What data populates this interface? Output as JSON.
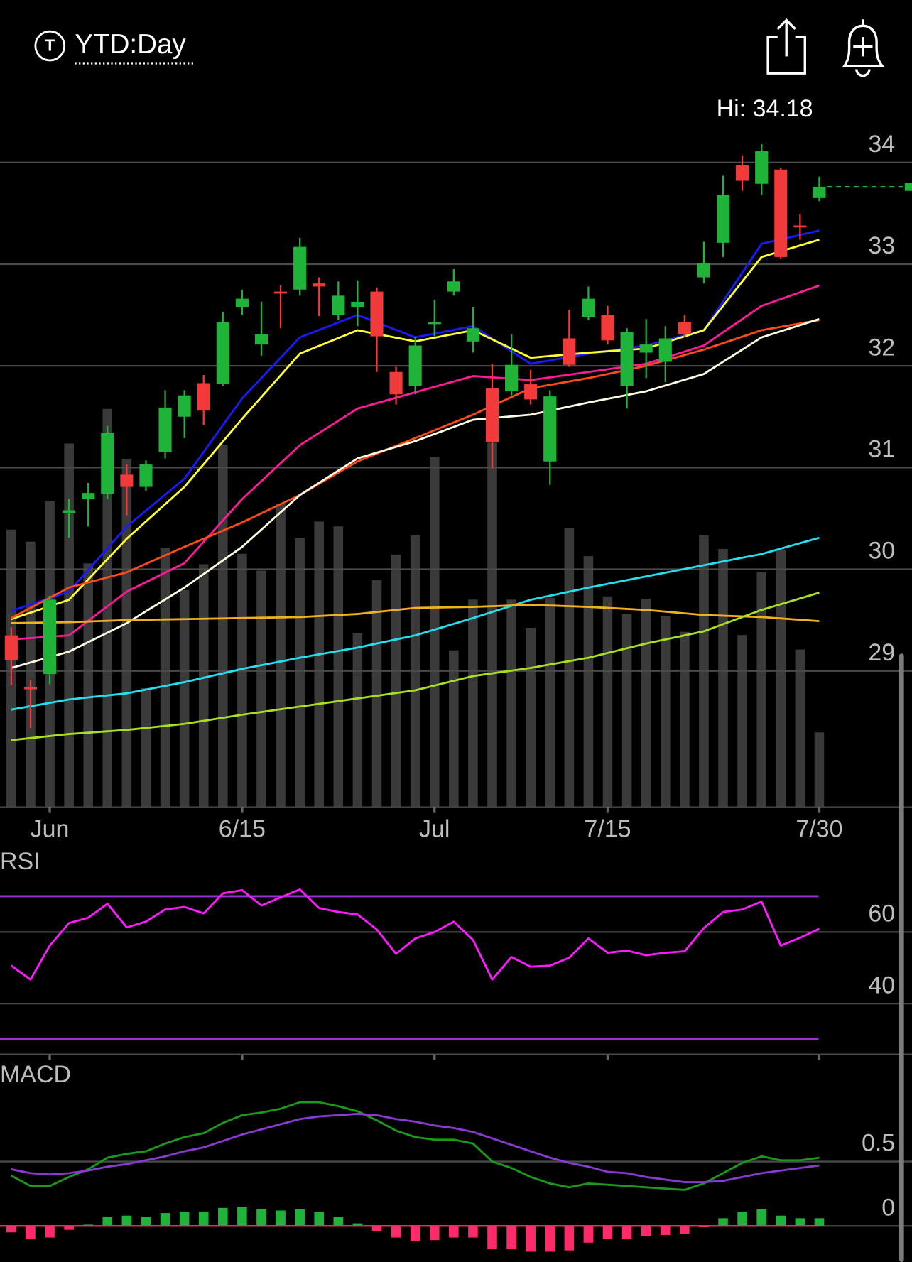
{
  "header": {
    "symbol_icon": "T",
    "range": "YTD:Day"
  },
  "chart_data": [
    {
      "type": "candlestick",
      "annotation": "Hi: 34.18",
      "categories": [
        null,
        null,
        "Jun",
        null,
        null,
        null,
        null,
        null,
        null,
        null,
        null,
        null,
        "6/15",
        null,
        null,
        null,
        null,
        null,
        null,
        null,
        null,
        null,
        "Jul",
        null,
        null,
        null,
        null,
        null,
        null,
        null,
        null,
        "7/15",
        null,
        null,
        null,
        null,
        null,
        null,
        null,
        null,
        null,
        null,
        "7/30"
      ],
      "open": [
        29.35,
        28.84,
        28.97,
        30.55,
        30.69,
        30.74,
        30.93,
        30.81,
        31.15,
        31.5,
        31.83,
        31.82,
        32.58,
        32.21,
        32.73,
        32.75,
        32.81,
        32.5,
        32.58,
        32.73,
        31.94,
        31.8,
        32.41,
        32.73,
        32.24,
        31.78,
        31.75,
        31.82,
        31.06,
        32.27,
        32.48,
        32.5,
        31.8,
        32.13,
        32.04,
        32.43,
        32.87,
        33.21,
        33.97,
        33.79,
        33.93,
        33.38,
        33.65
      ],
      "high": [
        29.43,
        28.91,
        29.74,
        30.69,
        30.85,
        31.41,
        31.03,
        31.07,
        31.76,
        31.76,
        31.91,
        32.53,
        32.75,
        32.63,
        32.79,
        33.26,
        32.87,
        32.83,
        32.84,
        32.77,
        31.99,
        32.28,
        32.65,
        32.95,
        32.58,
        32.02,
        32.31,
        31.96,
        31.76,
        32.55,
        32.78,
        32.59,
        32.37,
        32.46,
        32.39,
        32.5,
        33.22,
        33.87,
        34.07,
        34.18,
        33.95,
        33.49,
        33.86
      ],
      "low": [
        28.86,
        28.44,
        28.87,
        30.31,
        30.42,
        30.69,
        30.53,
        30.77,
        31.09,
        31.29,
        31.42,
        31.8,
        32.5,
        32.1,
        32.37,
        32.69,
        32.49,
        32.45,
        32.39,
        31.94,
        31.62,
        31.72,
        32.29,
        32.69,
        32.13,
        30.99,
        31.71,
        31.62,
        30.83,
        31.99,
        32.45,
        32.21,
        31.58,
        31.88,
        31.84,
        32.28,
        32.81,
        33.07,
        33.72,
        33.68,
        33.05,
        33.24,
        33.62
      ],
      "close": [
        29.11,
        28.82,
        29.7,
        30.58,
        30.75,
        31.34,
        30.81,
        31.03,
        31.59,
        31.71,
        31.56,
        32.43,
        32.66,
        32.31,
        32.71,
        33.17,
        32.78,
        32.69,
        32.63,
        32.29,
        31.72,
        32.2,
        32.43,
        32.83,
        32.37,
        31.25,
        32.01,
        31.67,
        31.7,
        32.01,
        32.66,
        32.25,
        32.33,
        32.21,
        32.27,
        32.31,
        33.01,
        33.68,
        33.82,
        34.11,
        33.07,
        33.36,
        33.76
      ],
      "up_color": "#1fb33a",
      "down_color": "#f23a3a",
      "volume": [
        69.0,
        66.0,
        76.0,
        90.4,
        60.6,
        99.0,
        86.6,
        29.6,
        64.4,
        54.0,
        60.4,
        90.0,
        63.0,
        58.8,
        75.4,
        67.0,
        71.0,
        69.8,
        43.2,
        56.4,
        62.8,
        67.6,
        87.0,
        39.0,
        51.6,
        90.6,
        51.6,
        44.6,
        52.0,
        69.4,
        62.4,
        52.4,
        48.0,
        51.8,
        47.6,
        43.6,
        67.6,
        64.2,
        42.8,
        58.4,
        64.0,
        39.2,
        18.6
      ],
      "volume_lim": [
        0,
        100
      ],
      "volume_color": "#3a3a3a",
      "overlay_x": [
        0,
        3,
        6,
        9,
        12,
        15,
        18,
        21,
        24,
        27,
        30,
        33,
        36,
        39,
        42
      ],
      "overlays": [
        {
          "color": "#1a1aff",
          "values": [
            29.59,
            29.78,
            30.42,
            30.89,
            31.68,
            32.28,
            32.5,
            32.28,
            32.39,
            32.02,
            32.12,
            32.2,
            32.35,
            33.2,
            33.33
          ]
        },
        {
          "color": "#ffff33",
          "values": [
            29.51,
            29.7,
            30.3,
            30.81,
            31.48,
            32.12,
            32.35,
            32.24,
            32.35,
            32.08,
            32.13,
            32.17,
            32.35,
            33.07,
            33.24
          ]
        },
        {
          "color": "#ff1a99",
          "values": [
            29.31,
            29.35,
            29.78,
            30.06,
            30.69,
            31.22,
            31.58,
            31.74,
            31.9,
            31.86,
            31.94,
            32.02,
            32.2,
            32.59,
            32.79
          ]
        },
        {
          "color": "#ff4a1a",
          "values": [
            29.52,
            29.82,
            29.97,
            30.22,
            30.46,
            30.73,
            31.06,
            31.29,
            31.52,
            31.78,
            31.88,
            32.0,
            32.16,
            32.35,
            32.45
          ]
        },
        {
          "color": "#fffbe0",
          "values": [
            29.03,
            29.19,
            29.47,
            29.82,
            30.22,
            30.73,
            31.09,
            31.26,
            31.47,
            31.52,
            31.64,
            31.75,
            31.92,
            32.28,
            32.46
          ]
        },
        {
          "color": "#22e0f0",
          "values": [
            28.62,
            28.72,
            28.78,
            28.89,
            29.02,
            29.13,
            29.23,
            29.35,
            29.52,
            29.7,
            29.82,
            29.93,
            30.04,
            30.15,
            30.31
          ]
        },
        {
          "color": "#f0b020",
          "values": [
            29.47,
            29.48,
            29.5,
            29.51,
            29.52,
            29.53,
            29.56,
            29.62,
            29.63,
            29.65,
            29.63,
            29.6,
            29.55,
            29.53,
            29.49
          ]
        },
        {
          "color": "#a8e020",
          "values": [
            28.32,
            28.38,
            28.42,
            28.48,
            28.57,
            28.65,
            28.73,
            28.81,
            28.95,
            29.03,
            29.13,
            29.27,
            29.39,
            29.6,
            29.77
          ]
        }
      ],
      "ylim": [
        27.66,
        34.41
      ],
      "yticks": [
        29,
        30,
        31,
        32,
        33,
        34
      ],
      "grid": true
    },
    {
      "type": "line",
      "title": "RSI",
      "series": [
        {
          "color": "#ff1aff",
          "values": [
            50.6,
            46.7,
            56.2,
            62.5,
            64.0,
            67.9,
            61.3,
            62.9,
            66.3,
            67.0,
            65.2,
            70.8,
            71.7,
            67.4,
            69.7,
            71.9,
            66.7,
            65.6,
            64.9,
            60.7,
            53.9,
            58.2,
            60.0,
            62.9,
            57.8,
            46.7,
            53.0,
            50.3,
            50.6,
            52.8,
            58.2,
            54.2,
            54.8,
            53.5,
            54.2,
            54.6,
            61.1,
            65.6,
            66.3,
            68.5,
            56.2,
            58.4,
            60.9
          ]
        }
      ],
      "levels": [
        70,
        30
      ],
      "level_color": "#9b30d9",
      "ylim": [
        25.8,
        75.3
      ],
      "yticks": [
        40,
        60
      ],
      "grid": true
    },
    {
      "type": "macd",
      "title": "MACD",
      "series": [
        {
          "color": "#1a9a1a",
          "values": [
            0.39,
            0.31,
            0.31,
            0.38,
            0.44,
            0.53,
            0.56,
            0.58,
            0.64,
            0.69,
            0.72,
            0.8,
            0.86,
            0.88,
            0.91,
            0.96,
            0.96,
            0.93,
            0.89,
            0.82,
            0.74,
            0.69,
            0.67,
            0.67,
            0.64,
            0.5,
            0.45,
            0.38,
            0.33,
            0.3,
            0.33,
            0.32,
            0.31,
            0.3,
            0.29,
            0.28,
            0.33,
            0.41,
            0.49,
            0.54,
            0.51,
            0.51,
            0.53
          ]
        },
        {
          "color": "#8a3ad0",
          "values": [
            0.44,
            0.41,
            0.4,
            0.41,
            0.43,
            0.46,
            0.48,
            0.51,
            0.54,
            0.58,
            0.61,
            0.66,
            0.71,
            0.75,
            0.79,
            0.83,
            0.85,
            0.86,
            0.87,
            0.86,
            0.83,
            0.81,
            0.78,
            0.76,
            0.73,
            0.68,
            0.63,
            0.58,
            0.53,
            0.49,
            0.46,
            0.42,
            0.41,
            0.38,
            0.36,
            0.34,
            0.34,
            0.35,
            0.38,
            0.41,
            0.43,
            0.45,
            0.47
          ]
        }
      ],
      "histogram": [
        -0.05,
        -0.1,
        -0.09,
        -0.03,
        0.01,
        0.07,
        0.08,
        0.07,
        0.1,
        0.11,
        0.11,
        0.14,
        0.15,
        0.13,
        0.12,
        0.13,
        0.11,
        0.07,
        0.02,
        -0.04,
        -0.09,
        -0.12,
        -0.11,
        -0.09,
        -0.09,
        -0.18,
        -0.18,
        -0.2,
        -0.2,
        -0.19,
        -0.13,
        -0.1,
        -0.1,
        -0.08,
        -0.07,
        -0.06,
        -0.01,
        0.06,
        0.11,
        0.13,
        0.08,
        0.06,
        0.06
      ],
      "histogram_colors": [
        "#1fb33a",
        "#ff2a6a"
      ],
      "ylim": [
        -0.28,
        1.27
      ],
      "yticks": [
        0,
        0.5
      ],
      "grid": true
    }
  ]
}
